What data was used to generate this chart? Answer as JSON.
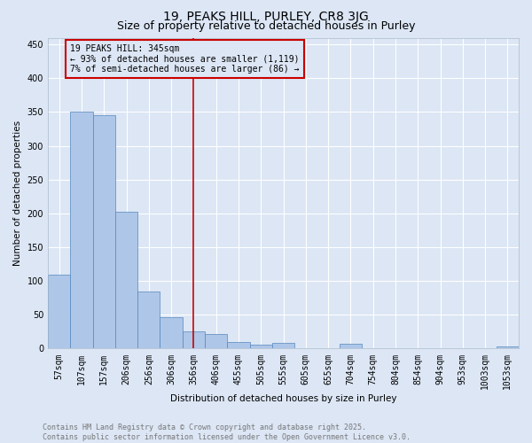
{
  "title": "19, PEAKS HILL, PURLEY, CR8 3JG",
  "subtitle": "Size of property relative to detached houses in Purley",
  "xlabel": "Distribution of detached houses by size in Purley",
  "ylabel": "Number of detached properties",
  "bar_labels": [
    "57sqm",
    "107sqm",
    "157sqm",
    "206sqm",
    "256sqm",
    "306sqm",
    "356sqm",
    "406sqm",
    "455sqm",
    "505sqm",
    "555sqm",
    "605sqm",
    "655sqm",
    "704sqm",
    "754sqm",
    "804sqm",
    "854sqm",
    "904sqm",
    "953sqm",
    "1003sqm",
    "1053sqm"
  ],
  "bar_values": [
    110,
    350,
    345,
    203,
    85,
    47,
    25,
    21,
    10,
    6,
    8,
    0,
    0,
    7,
    1,
    0,
    0,
    0,
    0,
    0,
    3
  ],
  "bar_color": "#aec6e8",
  "bar_edge_color": "#5588bb",
  "bg_color": "#dce6f5",
  "grid_color": "#ffffff",
  "vline_x": 6,
  "vline_color": "#cc0000",
  "annotation_text": "19 PEAKS HILL: 345sqm\n← 93% of detached houses are smaller (1,119)\n7% of semi-detached houses are larger (86) →",
  "annotation_box_color": "#cc0000",
  "ylim": [
    0,
    460
  ],
  "yticks": [
    0,
    50,
    100,
    150,
    200,
    250,
    300,
    350,
    400,
    450
  ],
  "footer_text": "Contains HM Land Registry data © Crown copyright and database right 2025.\nContains public sector information licensed under the Open Government Licence v3.0.",
  "title_fontsize": 10,
  "subtitle_fontsize": 9,
  "axis_label_fontsize": 7.5,
  "tick_fontsize": 7,
  "annotation_fontsize": 7,
  "footer_fontsize": 6
}
